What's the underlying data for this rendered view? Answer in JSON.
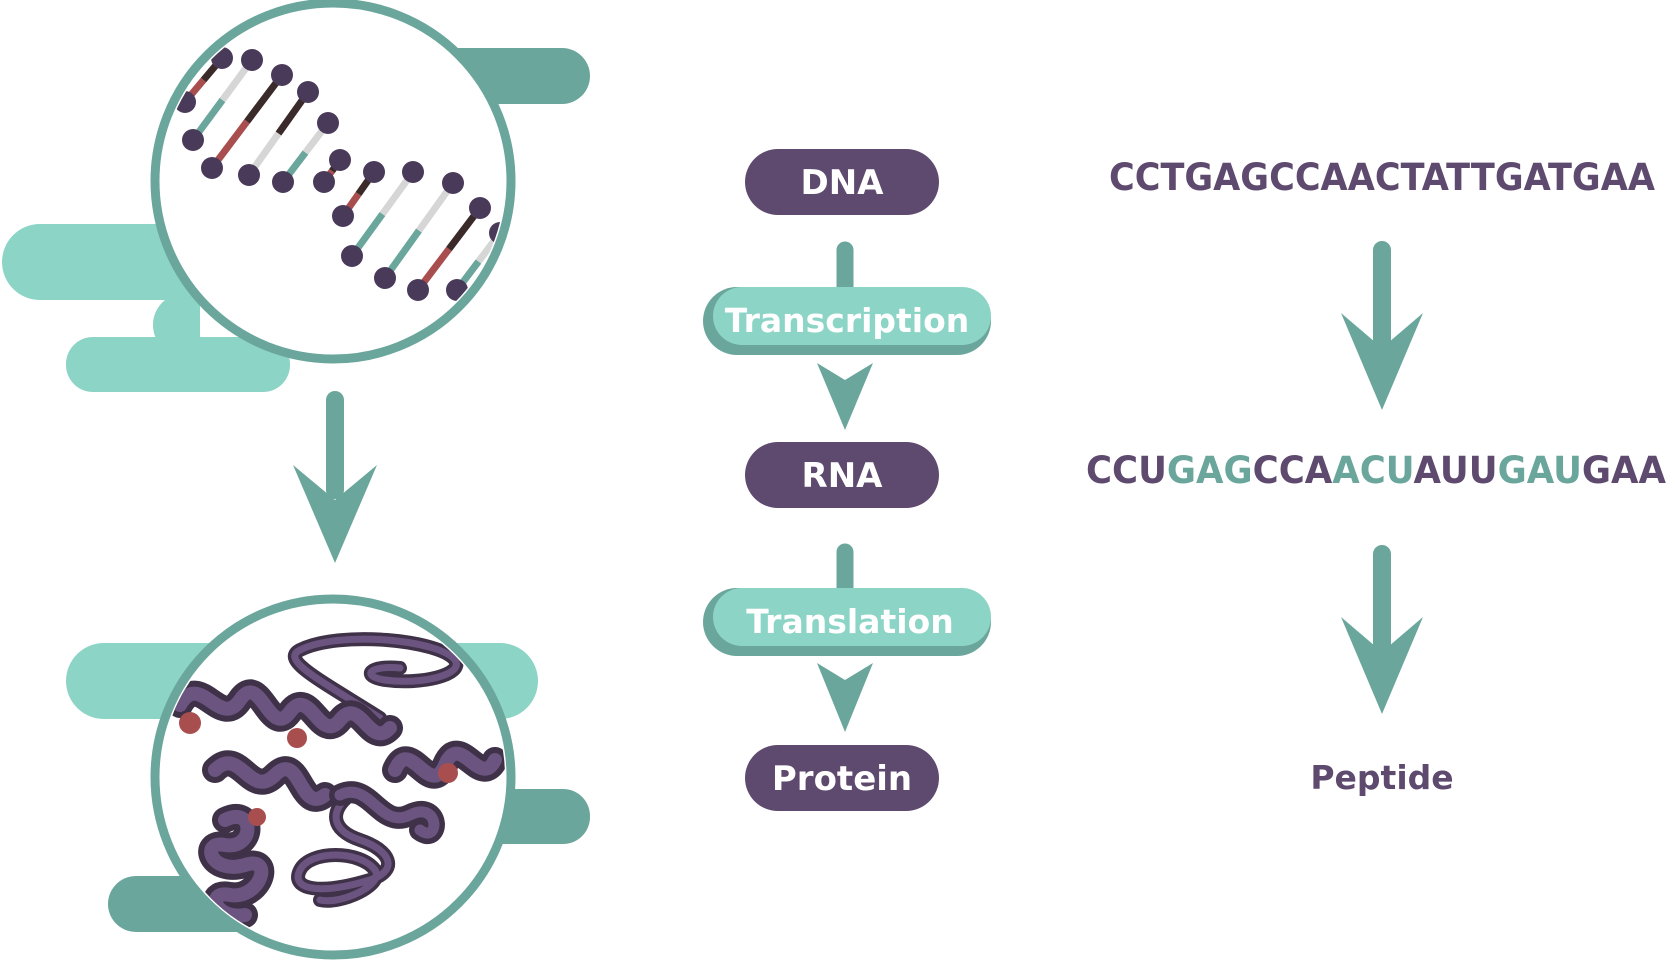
{
  "colors": {
    "purple": "#5d4a6e",
    "teal": "#6aa69c",
    "mint": "#8cd4c6",
    "mint_light": "#a8ebe0",
    "codon_teal": "#6aa69c",
    "rust": "#a94e4e",
    "dark_brown": "#3b2a2a",
    "light_gray": "#d6d6d6"
  },
  "stages": {
    "dna": "DNA",
    "transcription": "Transcription",
    "rna": "RNA",
    "translation": "Translation",
    "protein": "Protein"
  },
  "sequences": {
    "dna": "CCTGAGCCAACTATTGATGAA",
    "rna_segments": [
      {
        "text": "CCU",
        "color": "purple"
      },
      {
        "text": "GAG",
        "color": "teal"
      },
      {
        "text": "CCA",
        "color": "purple"
      },
      {
        "text": "ACU",
        "color": "teal"
      },
      {
        "text": "AUU",
        "color": "purple"
      },
      {
        "text": "GAU",
        "color": "teal"
      },
      {
        "text": "GAA",
        "color": "purple"
      }
    ],
    "peptide": "Peptide"
  },
  "icons": {
    "dna_helix": "dna-helix-icon",
    "protein_ribbon": "protein-ribbon-icon",
    "arrow_down": "arrow-down-icon"
  }
}
